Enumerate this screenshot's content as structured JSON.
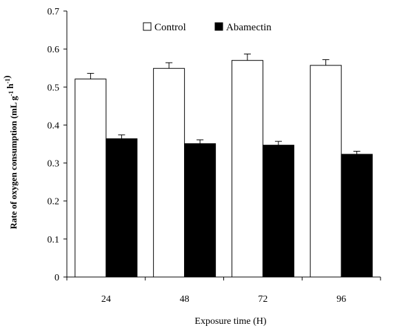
{
  "chart_data": {
    "type": "bar",
    "categories": [
      "24",
      "48",
      "72",
      "96"
    ],
    "series": [
      {
        "name": "Control",
        "values": [
          0.521,
          0.549,
          0.57,
          0.557
        ],
        "errors": [
          0.015,
          0.015,
          0.017,
          0.015
        ],
        "color": "#ffffff"
      },
      {
        "name": "Abamectin",
        "values": [
          0.364,
          0.351,
          0.347,
          0.323
        ],
        "errors": [
          0.01,
          0.01,
          0.01,
          0.008
        ],
        "color": "#000000"
      }
    ],
    "xlabel": "Exposure time (H)",
    "ylabel": {
      "prefix": "Rate of oxygen consumption (mL g",
      "sup1": "-1",
      "mid": " h",
      "sup2": "-1",
      "suffix": ")"
    },
    "ylim": [
      0,
      0.7
    ],
    "yticks": [
      "0",
      "0.1",
      "0.2",
      "0.3",
      "0.4",
      "0.5",
      "0.6",
      "0.7"
    ],
    "legend_position": "top-center",
    "grid": false
  }
}
